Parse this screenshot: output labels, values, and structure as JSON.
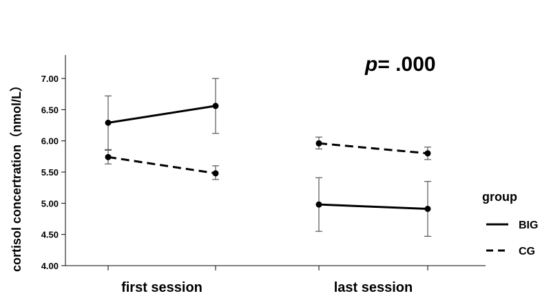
{
  "chart_data": {
    "type": "line",
    "title": "",
    "xlabel": "",
    "ylabel": "cortisol concertration（nmol/L）",
    "ylim": [
      4.0,
      7.25
    ],
    "yticks": [
      "4.00",
      "4.50",
      "5.00",
      "5.50",
      "6.00",
      "6.50",
      "7.00"
    ],
    "groups": [
      "first session",
      "last session"
    ],
    "annotation": {
      "p_symbol": "p",
      "p_text": "= .000"
    },
    "legend": {
      "title": "group",
      "position": "right"
    },
    "series": [
      {
        "name": "BIG",
        "line_style": "solid",
        "points": [
          {
            "group": "first session",
            "x": 1,
            "y": 6.29,
            "err_low": 5.85,
            "err_high": 6.72
          },
          {
            "group": "first session",
            "x": 2,
            "y": 6.56,
            "err_low": 6.12,
            "err_high": 7.0
          },
          {
            "group": "last session",
            "x": 1,
            "y": 4.98,
            "err_low": 4.55,
            "err_high": 5.41
          },
          {
            "group": "last session",
            "x": 2,
            "y": 4.91,
            "err_low": 4.47,
            "err_high": 5.35
          }
        ]
      },
      {
        "name": "CG",
        "line_style": "dashed",
        "points": [
          {
            "group": "first session",
            "x": 1,
            "y": 5.74,
            "err_low": 5.63,
            "err_high": 5.86
          },
          {
            "group": "first session",
            "x": 2,
            "y": 5.48,
            "err_low": 5.38,
            "err_high": 5.6
          },
          {
            "group": "last session",
            "x": 1,
            "y": 5.96,
            "err_low": 5.87,
            "err_high": 6.06
          },
          {
            "group": "last session",
            "x": 2,
            "y": 5.8,
            "err_low": 5.7,
            "err_high": 5.9
          }
        ]
      }
    ],
    "colors": {
      "line": "#000000",
      "errorbar": "#555555"
    }
  }
}
